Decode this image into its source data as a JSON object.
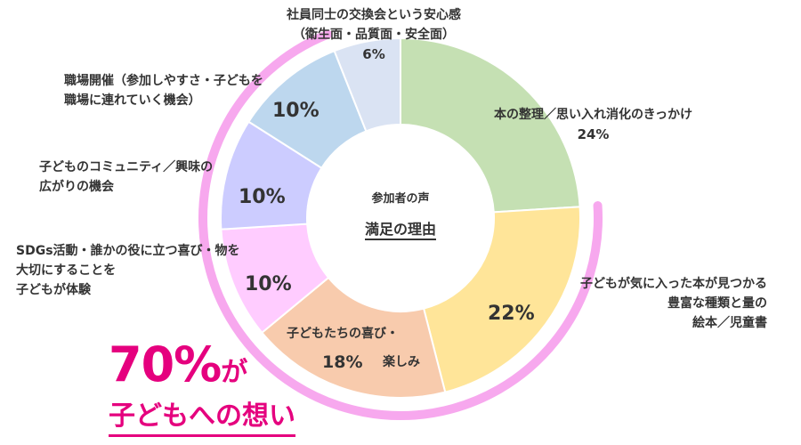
{
  "center": {
    "small": "参加者の声",
    "big": "満足の理由"
  },
  "highlight": {
    "percent": "70%",
    "suffix": "が",
    "line2": "子どもへの想い"
  },
  "colors": {
    "arc": "#f7a8ee",
    "slice_border": "#ffffff",
    "accent": "#e5007e"
  },
  "chart_data": {
    "type": "pie",
    "donut": true,
    "title": "満足の理由",
    "series": [
      {
        "label_lines": [
          "本の整理／思い入れ消化のきっかけ"
        ],
        "value_label": "24%",
        "value": 24,
        "color": "#c5e0b3"
      },
      {
        "label_lines": [
          "子どもが気に入った本が見つかる",
          "豊富な種類と量の",
          "絵本／児童書"
        ],
        "value_label": "22%",
        "value": 22,
        "color": "#ffe599"
      },
      {
        "label_lines": [
          "子どもたちの喜び・",
          "楽しみ"
        ],
        "value_label": "18%",
        "value": 18,
        "color": "#f8cbad"
      },
      {
        "label_lines": [
          "SDGs活動・誰かの役に立つ喜び・物を",
          "大切にすることを",
          "子どもが体験"
        ],
        "value_label": "10%",
        "value": 10,
        "color": "#ffccff"
      },
      {
        "label_lines": [
          "子どものコミュニティ／興味の",
          "広がりの機会"
        ],
        "value_label": "10%",
        "value": 10,
        "color": "#ccccff"
      },
      {
        "label_lines": [
          "職場開催（参加しやすさ・子どもを",
          "職場に連れていく機会）"
        ],
        "value_label": "10%",
        "value": 10,
        "color": "#bdd7ee"
      },
      {
        "label_lines": [
          "社員同士の交換会という安心感",
          "（衛生面・品質面・安全面）"
        ],
        "value_label": "6%",
        "value": 6,
        "color": "#dae3f3"
      }
    ]
  }
}
